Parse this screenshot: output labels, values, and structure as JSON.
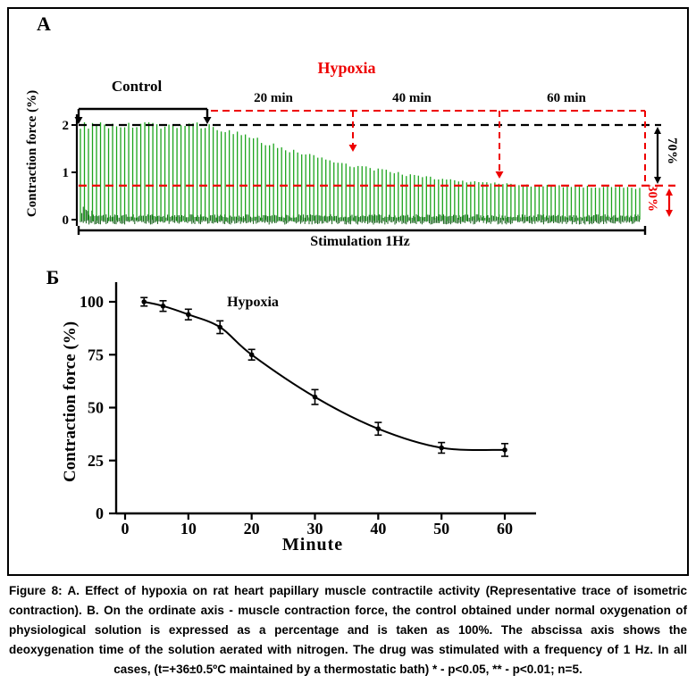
{
  "figure": {
    "colors": {
      "trace_green": "#1ca41c",
      "trace_dark_green": "#0b5a10",
      "accent_red": "#ee0000",
      "ink": "#000000"
    },
    "panel_a": {
      "label": "A",
      "title": "Hypoxia",
      "control_label": "Control",
      "time_label_20": "20 min",
      "time_label_40": "40 min",
      "time_label_60": "60 min",
      "ylabel": "Contraction force (%)",
      "pct_drop": "70%",
      "pct_remaining": "30%",
      "bottom_label": "Stimulation 1Hz"
    },
    "panel_b": {
      "label": "Б",
      "annotation": "Hypoxia",
      "ylabel": "Contraction force (%)",
      "xlabel": "Minute"
    }
  },
  "caption": {
    "text": "Figure 8: A. Effect of hypoxia on rat heart papillary muscle contractile activity (Representative trace of isometric contraction). B. On the ordinate axis - muscle contraction force, the control obtained under normal oxygenation of physiological solution is expressed as a percentage and is taken as 100%. The abscissa axis shows the deoxygenation time of the solution aerated with nitrogen. The drug was stimulated with a frequency of 1 Hz. In all cases, (t=+36±0.5ºC maintained by a thermostatic bath) * - p<0.05, ** - p<0.01; n=5."
  },
  "chart_data": [
    {
      "type": "line",
      "subtype": "isometric-contraction-trace",
      "panel": "A",
      "title": "Hypoxia",
      "ylabel": "Contraction force (%)",
      "yticks": [
        0,
        1,
        2
      ],
      "ylim": [
        0,
        2.3
      ],
      "annotations": {
        "control": "Control",
        "time_marks_min": [
          20,
          40,
          60
        ],
        "control_amplitude": 2.0,
        "hypoxia_amplitude": 0.72,
        "drop_percent": "70%",
        "residual_percent": "30%",
        "stimulation": "Stimulation 1Hz"
      },
      "envelope": {
        "t_fraction": [
          0,
          0.227,
          0.3,
          0.38,
          0.487,
          0.6,
          0.7,
          0.8,
          0.9,
          1.0
        ],
        "amplitude": [
          2.0,
          2.0,
          1.75,
          1.45,
          1.15,
          0.92,
          0.8,
          0.73,
          0.7,
          0.67
        ]
      },
      "reference_lines": [
        {
          "level": 2.0,
          "style": "dashed",
          "color": "#000000"
        },
        {
          "level": 0.72,
          "style": "dashed",
          "color": "#ee0000"
        }
      ]
    },
    {
      "type": "line",
      "panel": "B",
      "annotation": "Hypoxia",
      "xlabel": "Minute",
      "ylabel": "Contraction force (%)",
      "x": [
        3,
        6,
        10,
        15,
        20,
        30,
        40,
        50,
        60
      ],
      "y": [
        100,
        98,
        94,
        88,
        75,
        55,
        40,
        31,
        30
      ],
      "yerr": [
        2,
        2.5,
        2.5,
        3,
        2.5,
        3.5,
        3,
        2.5,
        3
      ],
      "xticks": [
        0,
        10,
        20,
        30,
        40,
        50,
        60
      ],
      "yticks": [
        0,
        25,
        50,
        75,
        100
      ],
      "xlim": [
        0,
        65
      ],
      "ylim": [
        0,
        108
      ],
      "grid": false,
      "marker": "circle",
      "line_color": "#000000"
    }
  ]
}
